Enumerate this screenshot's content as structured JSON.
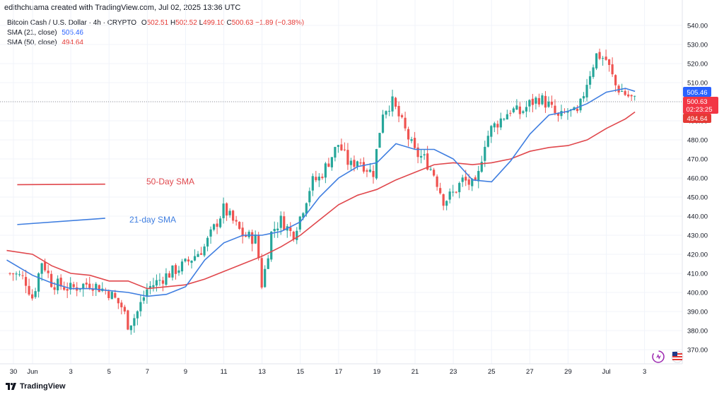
{
  "header": {
    "credit": "edithchuama created with TradingView.com, Jul 02, 2025 13:36 UTC"
  },
  "legend": {
    "symbol": "Bitcoin Cash / U.S. Dollar · 4h · CRYPTO",
    "o_label": "O",
    "o_value": "502.51",
    "h_label": "H",
    "h_value": "502.52",
    "l_label": "L",
    "l_value": "499.10",
    "c_label": "C",
    "c_value": "500.63",
    "change": "−1.89 (−0.38%)",
    "sma21_label": "SMA (21, close)",
    "sma21_value": "505.46",
    "sma50_label": "SMA (50, close)",
    "sma50_value": "494.64"
  },
  "annotations": {
    "sma50": "50-Day SMA",
    "sma21": "21-day SMA"
  },
  "price_badges": {
    "sma21": "505.46",
    "last": "500.63",
    "countdown": "02:23:25",
    "sma50": "494.64"
  },
  "footer": {
    "brand": "TradingView"
  },
  "colors": {
    "up": "#26a69a",
    "down": "#ef5350",
    "sma21": "#3f7ee0",
    "sma50": "#e0474c",
    "badge21": "#2962ff",
    "badgeLast": "#f23645",
    "badge50": "#e53935"
  },
  "chart_data": {
    "type": "candlestick",
    "title": "Bitcoin Cash / U.S. Dollar · 4h · CRYPTO",
    "y_range": [
      364,
      546
    ],
    "y_ticks": [
      540,
      530,
      520,
      510,
      500,
      490,
      480,
      470,
      460,
      450,
      440,
      430,
      420,
      410,
      400,
      390,
      380,
      370
    ],
    "x_ticks": [
      {
        "label": "30",
        "day": 0
      },
      {
        "label": "Jun",
        "day": 1
      },
      {
        "label": "3",
        "day": 3
      },
      {
        "label": "5",
        "day": 5
      },
      {
        "label": "7",
        "day": 7
      },
      {
        "label": "9",
        "day": 9
      },
      {
        "label": "11",
        "day": 11
      },
      {
        "label": "13",
        "day": 13
      },
      {
        "label": "15",
        "day": 15
      },
      {
        "label": "17",
        "day": 17
      },
      {
        "label": "19",
        "day": 19
      },
      {
        "label": "21",
        "day": 21
      },
      {
        "label": "23",
        "day": 23
      },
      {
        "label": "25",
        "day": 25
      },
      {
        "label": "27",
        "day": 27
      },
      {
        "label": "29",
        "day": 29
      },
      {
        "label": "Jul",
        "day": 31
      },
      {
        "label": "3",
        "day": 33
      }
    ],
    "candle_day_range": [
      -0.35,
      32.5
    ],
    "close_path_keypoints": [
      [
        0,
        410
      ],
      [
        0.6,
        407
      ],
      [
        1.0,
        397
      ],
      [
        1.5,
        417
      ],
      [
        2.0,
        405
      ],
      [
        3.0,
        402
      ],
      [
        4.0,
        405
      ],
      [
        5.0,
        400
      ],
      [
        5.7,
        392
      ],
      [
        6.0,
        383
      ],
      [
        6.4,
        388
      ],
      [
        7.0,
        402
      ],
      [
        8.0,
        409
      ],
      [
        9.0,
        415
      ],
      [
        10.0,
        424
      ],
      [
        11.0,
        444
      ],
      [
        12.0,
        430
      ],
      [
        12.7,
        428
      ],
      [
        13.0,
        403
      ],
      [
        13.5,
        432
      ],
      [
        14.0,
        438
      ],
      [
        14.6,
        430
      ],
      [
        15.0,
        440
      ],
      [
        15.6,
        458
      ],
      [
        16.0,
        460
      ],
      [
        17.0,
        478
      ],
      [
        17.6,
        466
      ],
      [
        18.0,
        470
      ],
      [
        18.8,
        462
      ],
      [
        19.3,
        495
      ],
      [
        19.8,
        500
      ],
      [
        20.3,
        489
      ],
      [
        21.0,
        473
      ],
      [
        21.5,
        470
      ],
      [
        22.0,
        462
      ],
      [
        22.5,
        448
      ],
      [
        23.0,
        452
      ],
      [
        23.5,
        459
      ],
      [
        24.2,
        455
      ],
      [
        24.6,
        478
      ],
      [
        25.0,
        486
      ],
      [
        26.0,
        496
      ],
      [
        26.5,
        494
      ],
      [
        27.0,
        499
      ],
      [
        27.5,
        502
      ],
      [
        28.0,
        498
      ],
      [
        28.5,
        491
      ],
      [
        29.0,
        495
      ],
      [
        29.5,
        493
      ],
      [
        30.0,
        511
      ],
      [
        30.5,
        525
      ],
      [
        31.0,
        522
      ],
      [
        31.5,
        508
      ],
      [
        32.0,
        504
      ],
      [
        32.5,
        500.63
      ]
    ],
    "series": [
      {
        "name": "SMA (21, close)",
        "last": 505.46,
        "points": [
          [
            -0.35,
            417
          ],
          [
            1,
            409
          ],
          [
            2,
            405
          ],
          [
            3,
            402
          ],
          [
            4,
            402
          ],
          [
            5,
            401
          ],
          [
            6,
            400
          ],
          [
            7,
            398
          ],
          [
            8,
            399
          ],
          [
            9,
            403
          ],
          [
            10,
            417
          ],
          [
            11,
            426
          ],
          [
            12,
            430
          ],
          [
            13,
            430
          ],
          [
            14,
            432
          ],
          [
            15,
            437
          ],
          [
            16,
            450
          ],
          [
            17,
            460
          ],
          [
            18,
            466
          ],
          [
            19,
            468
          ],
          [
            20,
            478
          ],
          [
            21,
            475
          ],
          [
            22,
            475
          ],
          [
            23,
            470
          ],
          [
            24,
            459
          ],
          [
            25,
            458
          ],
          [
            26,
            469
          ],
          [
            27,
            483
          ],
          [
            28,
            493
          ],
          [
            29,
            495
          ],
          [
            30,
            499
          ],
          [
            31,
            505
          ],
          [
            32,
            507
          ],
          [
            32.5,
            505.46
          ]
        ]
      },
      {
        "name": "SMA (50, close)",
        "last": 494.64,
        "points": [
          [
            -0.35,
            422
          ],
          [
            1,
            420
          ],
          [
            2,
            414
          ],
          [
            3,
            410
          ],
          [
            4,
            409
          ],
          [
            5,
            406
          ],
          [
            6,
            406
          ],
          [
            7,
            402
          ],
          [
            8,
            403
          ],
          [
            9,
            404
          ],
          [
            10,
            407
          ],
          [
            11,
            411
          ],
          [
            12,
            415
          ],
          [
            13,
            419
          ],
          [
            14,
            424
          ],
          [
            15,
            430
          ],
          [
            16,
            438
          ],
          [
            17,
            446
          ],
          [
            18,
            451
          ],
          [
            19,
            454
          ],
          [
            20,
            459
          ],
          [
            21,
            463
          ],
          [
            22,
            467
          ],
          [
            23,
            468
          ],
          [
            24,
            467
          ],
          [
            25,
            468
          ],
          [
            26,
            470
          ],
          [
            27,
            474
          ],
          [
            28,
            476
          ],
          [
            29,
            477
          ],
          [
            30,
            480
          ],
          [
            31,
            486
          ],
          [
            32,
            491
          ],
          [
            32.5,
            494.64
          ]
        ]
      }
    ],
    "sample_lines": {
      "sma50": {
        "y": [
          456.5,
          456.8
        ],
        "day": [
          0.2,
          4.8
        ]
      },
      "sma21": {
        "y": [
          435.6,
          438.9
        ],
        "day": [
          0.2,
          4.8
        ]
      }
    }
  }
}
